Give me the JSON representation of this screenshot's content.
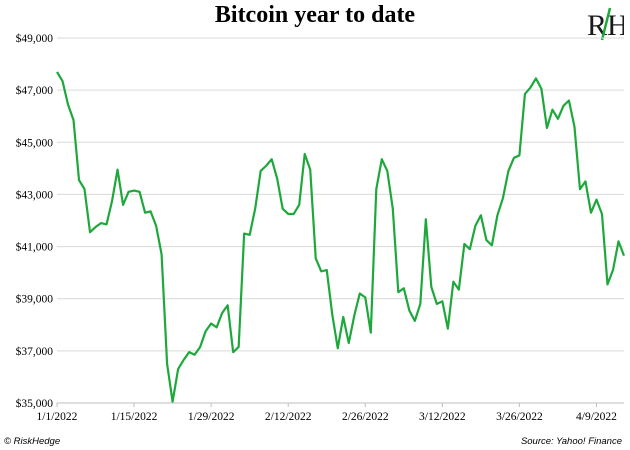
{
  "chart_data": {
    "type": "line",
    "title": "Bitcoin year to date",
    "xlabel": "",
    "ylabel": "",
    "x_tick_labels": [
      "1/1/2022",
      "1/15/2022",
      "1/29/2022",
      "2/12/2022",
      "2/26/2022",
      "3/12/2022",
      "3/26/2022",
      "4/9/2022"
    ],
    "y_tick_labels": [
      "$35,000",
      "$37,000",
      "$39,000",
      "$41,000",
      "$43,000",
      "$45,000",
      "$47,000",
      "$49,000"
    ],
    "ylim": [
      35000,
      49000
    ],
    "x_range_days": [
      0,
      103
    ],
    "grid": "horizontal",
    "line_color": "#1ea83c",
    "series": [
      {
        "values": [
          [
            0,
            47700
          ],
          [
            1,
            47350
          ],
          [
            2,
            46450
          ],
          [
            3,
            45850
          ],
          [
            4,
            43550
          ],
          [
            5,
            43200
          ],
          [
            6,
            41550
          ],
          [
            7,
            41750
          ],
          [
            8,
            41900
          ],
          [
            9,
            41850
          ],
          [
            10,
            42750
          ],
          [
            11,
            43950
          ],
          [
            12,
            42600
          ],
          [
            13,
            43100
          ],
          [
            14,
            43150
          ],
          [
            15,
            43100
          ],
          [
            16,
            42300
          ],
          [
            17,
            42350
          ],
          [
            18,
            41800
          ],
          [
            19,
            40700
          ],
          [
            20,
            36500
          ],
          [
            21,
            35050
          ],
          [
            22,
            36300
          ],
          [
            23,
            36650
          ],
          [
            24,
            36950
          ],
          [
            25,
            36850
          ],
          [
            26,
            37150
          ],
          [
            27,
            37750
          ],
          [
            28,
            38050
          ],
          [
            29,
            37900
          ],
          [
            30,
            38450
          ],
          [
            31,
            38750
          ],
          [
            32,
            36950
          ],
          [
            33,
            37150
          ],
          [
            34,
            41500
          ],
          [
            35,
            41450
          ],
          [
            36,
            42450
          ],
          [
            37,
            43900
          ],
          [
            38,
            44100
          ],
          [
            39,
            44350
          ],
          [
            40,
            43600
          ],
          [
            41,
            42450
          ],
          [
            42,
            42250
          ],
          [
            43,
            42250
          ],
          [
            44,
            42600
          ],
          [
            45,
            44550
          ],
          [
            46,
            43950
          ],
          [
            47,
            40550
          ],
          [
            48,
            40050
          ],
          [
            49,
            40100
          ],
          [
            50,
            38400
          ],
          [
            51,
            37100
          ],
          [
            52,
            38300
          ],
          [
            53,
            37300
          ],
          [
            54,
            38350
          ],
          [
            55,
            39200
          ],
          [
            56,
            39050
          ],
          [
            57,
            37700
          ],
          [
            58,
            43200
          ],
          [
            59,
            44350
          ],
          [
            60,
            43900
          ],
          [
            61,
            42450
          ],
          [
            62,
            39250
          ],
          [
            63,
            39400
          ],
          [
            64,
            38550
          ],
          [
            65,
            38150
          ],
          [
            66,
            38800
          ],
          [
            67,
            42050
          ],
          [
            68,
            39450
          ],
          [
            69,
            38800
          ],
          [
            70,
            38900
          ],
          [
            71,
            37850
          ],
          [
            72,
            39650
          ],
          [
            73,
            39350
          ],
          [
            74,
            41100
          ],
          [
            75,
            40900
          ],
          [
            76,
            41800
          ],
          [
            77,
            42200
          ],
          [
            78,
            41250
          ],
          [
            79,
            41050
          ],
          [
            80,
            42200
          ],
          [
            81,
            42850
          ],
          [
            82,
            43900
          ],
          [
            83,
            44400
          ],
          [
            84,
            44500
          ],
          [
            85,
            46850
          ],
          [
            86,
            47100
          ],
          [
            87,
            47450
          ],
          [
            88,
            47050
          ],
          [
            89,
            45550
          ],
          [
            90,
            46250
          ],
          [
            91,
            45900
          ],
          [
            92,
            46400
          ],
          [
            93,
            46600
          ],
          [
            94,
            45600
          ],
          [
            95,
            43200
          ],
          [
            96,
            43500
          ],
          [
            97,
            42300
          ],
          [
            98,
            42800
          ],
          [
            99,
            42250
          ],
          [
            100,
            39550
          ],
          [
            101,
            40100
          ],
          [
            102,
            41200
          ],
          [
            103,
            40650
          ]
        ]
      }
    ]
  },
  "footer": {
    "left": "© RiskHedge",
    "right": "Source: Yahoo! Finance"
  },
  "logo": {
    "letters": "RH",
    "text_color": "#1a1a1a",
    "accent_color": "#1ea83c"
  }
}
